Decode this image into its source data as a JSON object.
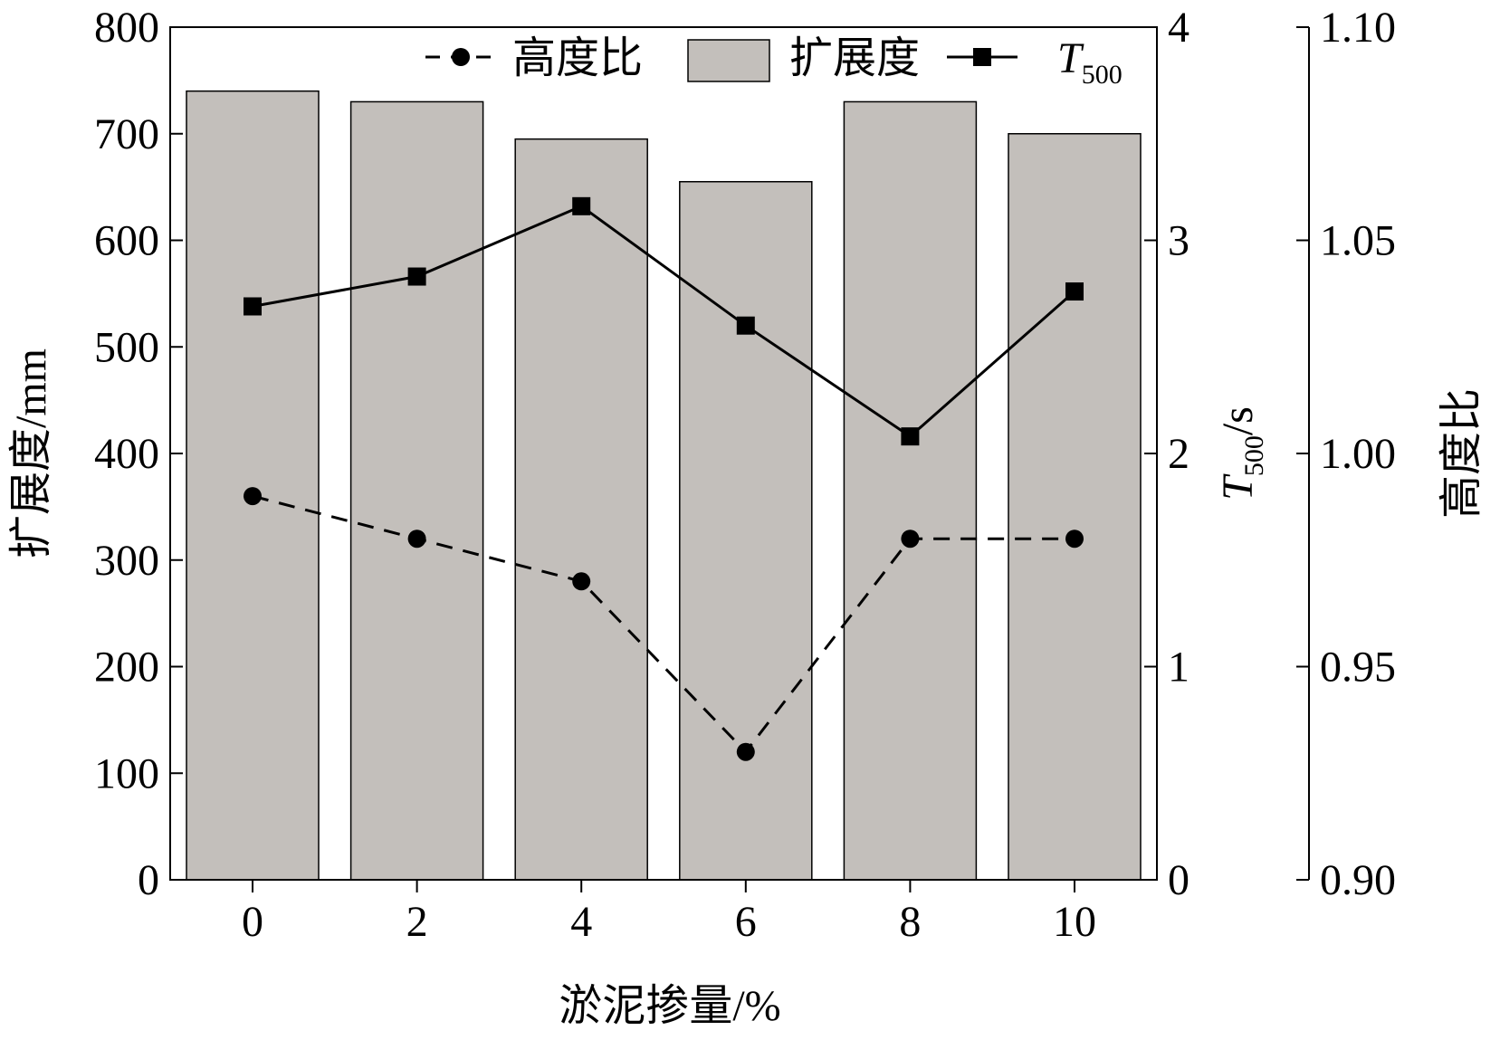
{
  "chart_data": {
    "type": "bar",
    "xlabel": "淤泥掺量/%",
    "x_ticks": [
      "0",
      "2",
      "4",
      "6",
      "8",
      "10"
    ],
    "x_values": [
      0,
      2,
      4,
      6,
      8,
      10
    ],
    "bars": {
      "name": "扩展度",
      "values": [
        740,
        730,
        695,
        655,
        730,
        700
      ],
      "color": "#c3bfbb",
      "axis": "left"
    },
    "t500": {
      "name_main": "T",
      "name_sub": "500",
      "type": "line",
      "line_style": "solid",
      "marker": "square",
      "values": [
        2.69,
        2.83,
        3.16,
        2.6,
        2.08,
        2.76
      ],
      "axis": "right1"
    },
    "height_ratio": {
      "name": "高度比",
      "type": "line",
      "line_style": "dashed",
      "marker": "circle",
      "values": [
        0.99,
        0.98,
        0.97,
        0.93,
        0.98,
        0.98
      ],
      "axis": "right2"
    },
    "left_axis": {
      "label": "扩展度/mm",
      "ylim": [
        0,
        800
      ],
      "ticks": [
        "0",
        "100",
        "200",
        "300",
        "400",
        "500",
        "600",
        "700",
        "800"
      ]
    },
    "right_axis_1": {
      "label_main": "T",
      "label_sub": "500",
      "label_unit": "/s",
      "ylim": [
        0,
        4
      ],
      "ticks": [
        "0",
        "1",
        "2",
        "3",
        "4"
      ]
    },
    "right_axis_2": {
      "label": "高度比",
      "ylim": [
        0.9,
        1.1
      ],
      "ticks": [
        "0.90",
        "0.95",
        "1.00",
        "1.05",
        "1.10"
      ]
    },
    "legend_position": "top",
    "grid": false
  }
}
